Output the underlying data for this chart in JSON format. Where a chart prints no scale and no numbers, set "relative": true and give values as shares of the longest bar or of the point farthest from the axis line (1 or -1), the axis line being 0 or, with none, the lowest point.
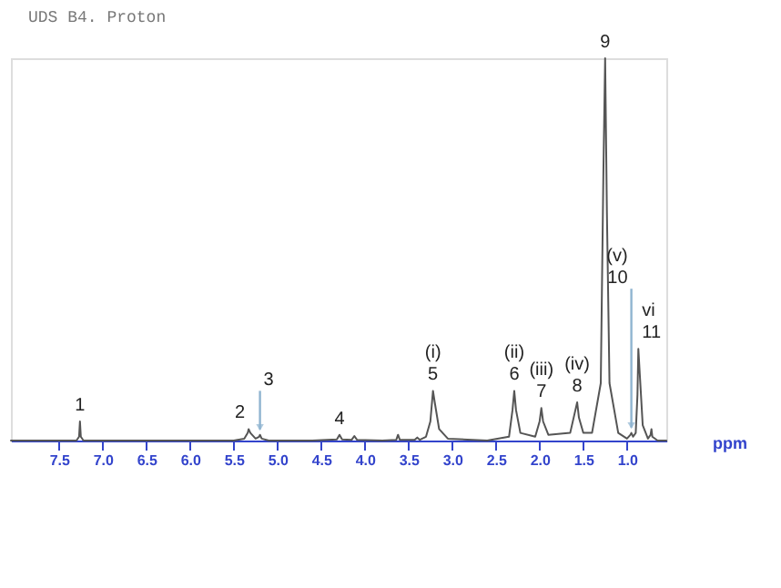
{
  "chart_data": {
    "type": "line",
    "title": "UDS B4. Proton",
    "xlabel": "ppm",
    "relative": true,
    "xlim": [
      8.05,
      0.55
    ],
    "xticks": [
      7.5,
      {
        "value": 7,
        "label": "7.0"
      },
      6.5,
      {
        "value": 6,
        "label": "6.0"
      },
      5.5,
      {
        "value": 5,
        "label": "5.0"
      },
      4.5,
      {
        "value": 4,
        "label": "4.0"
      },
      3.5,
      {
        "value": 3,
        "label": "3.0"
      },
      2.5,
      {
        "value": 2,
        "label": "2.0"
      },
      1.5,
      {
        "value": 1,
        "label": "1.0"
      }
    ],
    "grid": false,
    "marker": "none",
    "line_style": "solid",
    "series": [
      {
        "color": "#555555",
        "x": [
          8.05,
          7.5,
          7.3,
          7.27,
          7.26,
          7.25,
          7.22,
          6.5,
          6.0,
          5.5,
          5.38,
          5.34,
          5.33,
          5.31,
          5.25,
          5.21,
          5.2,
          5.18,
          5.1,
          4.6,
          4.32,
          4.29,
          4.26,
          4.15,
          4.12,
          4.09,
          3.8,
          3.64,
          3.62,
          3.6,
          3.43,
          3.4,
          3.37,
          3.3,
          3.25,
          3.22,
          3.2,
          3.15,
          3.05,
          2.6,
          2.35,
          2.31,
          2.29,
          2.27,
          2.22,
          2.05,
          2.0,
          1.98,
          1.96,
          1.9,
          1.65,
          1.6,
          1.57,
          1.55,
          1.5,
          1.4,
          1.3,
          1.27,
          1.25,
          1.23,
          1.2,
          1.1,
          1.0,
          0.96,
          0.95,
          0.93,
          0.9,
          0.88,
          0.87,
          0.85,
          0.82,
          0.76,
          0.73,
          0.72,
          0.71,
          0.65,
          0.55
        ],
        "values": [
          0,
          0,
          0,
          0.01,
          0.05,
          0.01,
          0,
          0,
          0,
          0,
          0.005,
          0.02,
          0.03,
          0.02,
          0.005,
          0.01,
          0.015,
          0.005,
          0,
          0,
          0.003,
          0.015,
          0.003,
          0.002,
          0.012,
          0.002,
          0,
          0.002,
          0.015,
          0.002,
          0.002,
          0.008,
          0.002,
          0.01,
          0.05,
          0.13,
          0.1,
          0.03,
          0.005,
          0,
          0.01,
          0.08,
          0.13,
          0.08,
          0.02,
          0.01,
          0.05,
          0.085,
          0.05,
          0.015,
          0.02,
          0.07,
          0.1,
          0.06,
          0.02,
          0.02,
          0.15,
          0.7,
          1.0,
          0.6,
          0.15,
          0.02,
          0.005,
          0.015,
          0.02,
          0.01,
          0.02,
          0.12,
          0.24,
          0.16,
          0.04,
          0.005,
          0.015,
          0.03,
          0.01,
          0,
          0
        ]
      }
    ],
    "annotations": [
      {
        "text": "1",
        "x": 7.26,
        "y": 0.05
      },
      {
        "text": "2",
        "x": 5.33,
        "y": 0.03
      },
      {
        "text": "3",
        "x": 5.2,
        "y": 0.015
      },
      {
        "text": "4",
        "x": 4.29,
        "y": 0.015
      },
      {
        "text": "(i)",
        "x": 3.22,
        "y": 0.13
      },
      {
        "text": "5",
        "x": 3.22,
        "y": 0.13
      },
      {
        "text": "(ii)",
        "x": 2.29,
        "y": 0.13
      },
      {
        "text": "6",
        "x": 2.29,
        "y": 0.13
      },
      {
        "text": "(iii)",
        "x": 1.98,
        "y": 0.085
      },
      {
        "text": "7",
        "x": 1.98,
        "y": 0.085
      },
      {
        "text": "(iv)",
        "x": 1.57,
        "y": 0.1
      },
      {
        "text": "8",
        "x": 1.57,
        "y": 0.1
      },
      {
        "text": "9",
        "x": 1.25,
        "y": 1.0
      },
      {
        "text": "(v)",
        "x": 0.95,
        "y": 0.02
      },
      {
        "text": "10",
        "x": 0.95,
        "y": 0.02
      },
      {
        "text": "vi",
        "x": 0.87,
        "y": 0.24
      },
      {
        "text": "11",
        "x": 0.87,
        "y": 0.24
      }
    ]
  }
}
